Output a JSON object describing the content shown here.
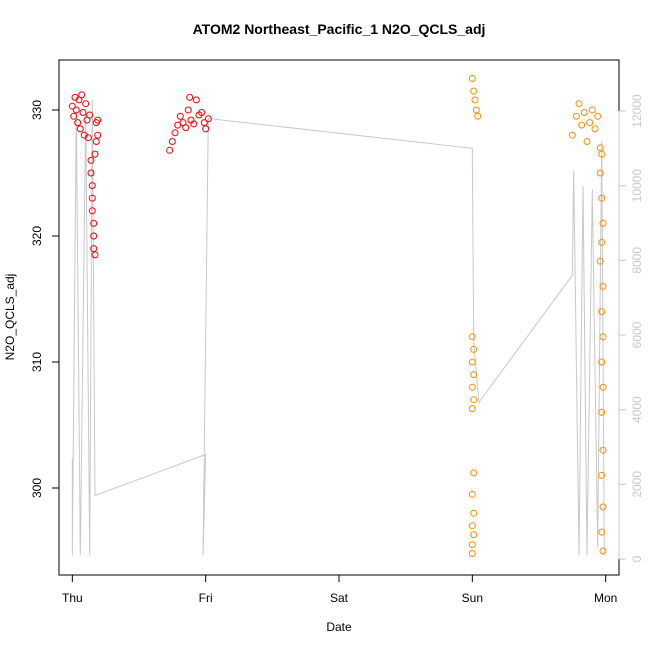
{
  "chart_data": {
    "type": "scatter",
    "title": "ATOM2 Northeast_Pacific_1 N2O_QCLS_adj",
    "xlabel": "Date",
    "ylabel": "N2O_QCLS_adj",
    "x_ticks": [
      "Thu",
      "Fri",
      "Sat",
      "Sun",
      "Mon"
    ],
    "y_ticks": [
      300,
      310,
      320,
      330
    ],
    "y_range": [
      294,
      333
    ],
    "y2_ticks": [
      0,
      2000,
      4000,
      6000,
      8000,
      10000,
      12000
    ],
    "y2_range": [
      -400,
      13000
    ],
    "x_range_days": [
      -0.1,
      4.1
    ],
    "grid": false,
    "series": [
      {
        "color": "#ff0000",
        "marker": "open-circle",
        "values": [
          [
            0.0,
            330.3
          ],
          [
            0.01,
            329.5
          ],
          [
            0.02,
            331.0
          ],
          [
            0.03,
            330.0
          ],
          [
            0.04,
            329.0
          ],
          [
            0.05,
            330.8
          ],
          [
            0.06,
            328.5
          ],
          [
            0.07,
            331.2
          ],
          [
            0.08,
            329.8
          ],
          [
            0.09,
            328.0
          ],
          [
            0.1,
            330.5
          ],
          [
            0.11,
            329.2
          ],
          [
            0.12,
            327.8
          ],
          [
            0.13,
            329.6
          ],
          [
            0.14,
            326.0
          ],
          [
            0.14,
            325.0
          ],
          [
            0.15,
            324.0
          ],
          [
            0.15,
            323.0
          ],
          [
            0.15,
            322.0
          ],
          [
            0.16,
            321.0
          ],
          [
            0.16,
            320.0
          ],
          [
            0.16,
            319.0
          ],
          [
            0.17,
            318.5
          ],
          [
            0.17,
            326.5
          ],
          [
            0.18,
            327.5
          ],
          [
            0.18,
            329.0
          ],
          [
            0.19,
            328.0
          ],
          [
            0.19,
            329.2
          ],
          [
            0.73,
            326.8
          ],
          [
            0.75,
            327.5
          ],
          [
            0.77,
            328.2
          ],
          [
            0.79,
            328.8
          ],
          [
            0.81,
            329.5
          ],
          [
            0.83,
            329.0
          ],
          [
            0.85,
            328.6
          ],
          [
            0.87,
            330.0
          ],
          [
            0.88,
            331.0
          ],
          [
            0.89,
            329.2
          ],
          [
            0.91,
            328.9
          ],
          [
            0.93,
            330.8
          ],
          [
            0.95,
            329.6
          ],
          [
            0.97,
            329.8
          ],
          [
            0.99,
            329.0
          ],
          [
            1.0,
            328.5
          ],
          [
            1.02,
            329.3
          ]
        ]
      },
      {
        "color": "#ff8c00",
        "marker": "open-circle",
        "values": [
          [
            3.0,
            332.5
          ],
          [
            3.01,
            331.5
          ],
          [
            3.02,
            330.8
          ],
          [
            3.03,
            330.0
          ],
          [
            3.04,
            329.5
          ],
          [
            3.0,
            312.0
          ],
          [
            3.01,
            311.0
          ],
          [
            3.0,
            310.0
          ],
          [
            3.01,
            309.0
          ],
          [
            3.0,
            308.0
          ],
          [
            3.01,
            307.0
          ],
          [
            3.0,
            306.3
          ],
          [
            3.01,
            301.2
          ],
          [
            3.0,
            299.5
          ],
          [
            3.01,
            298.0
          ],
          [
            3.0,
            297.0
          ],
          [
            3.01,
            296.3
          ],
          [
            3.0,
            295.5
          ],
          [
            3.0,
            294.8
          ],
          [
            3.75,
            328.0
          ],
          [
            3.78,
            329.5
          ],
          [
            3.8,
            330.5
          ],
          [
            3.82,
            328.8
          ],
          [
            3.84,
            329.8
          ],
          [
            3.86,
            327.5
          ],
          [
            3.88,
            329.0
          ],
          [
            3.9,
            330.0
          ],
          [
            3.92,
            328.5
          ],
          [
            3.94,
            329.5
          ],
          [
            3.96,
            327.0
          ],
          [
            3.97,
            326.5
          ],
          [
            3.96,
            325.0
          ],
          [
            3.97,
            323.0
          ],
          [
            3.98,
            321.0
          ],
          [
            3.97,
            319.5
          ],
          [
            3.96,
            318.0
          ],
          [
            3.98,
            316.0
          ],
          [
            3.97,
            314.0
          ],
          [
            3.98,
            312.0
          ],
          [
            3.97,
            310.0
          ],
          [
            3.98,
            308.0
          ],
          [
            3.97,
            306.0
          ],
          [
            3.98,
            303.0
          ],
          [
            3.97,
            301.0
          ],
          [
            3.98,
            298.5
          ],
          [
            3.97,
            296.5
          ],
          [
            3.98,
            295.0
          ]
        ]
      },
      {
        "color": "#c8c8c8",
        "marker": "line",
        "axis": "secondary",
        "values": [
          [
            0.0,
            2700
          ],
          [
            0.0,
            100
          ],
          [
            0.03,
            12000
          ],
          [
            0.06,
            100
          ],
          [
            0.1,
            12000
          ],
          [
            0.13,
            100
          ],
          [
            0.15,
            12300
          ],
          [
            0.17,
            1700
          ],
          [
            1.0,
            2800
          ],
          [
            0.98,
            100
          ],
          [
            1.02,
            11800
          ],
          [
            3.0,
            11000
          ],
          [
            3.01,
            5800
          ],
          [
            3.05,
            4200
          ],
          [
            3.75,
            7600
          ],
          [
            3.76,
            10400
          ],
          [
            3.8,
            100
          ],
          [
            3.83,
            10000
          ],
          [
            3.86,
            100
          ],
          [
            3.9,
            9900
          ],
          [
            3.94,
            300
          ],
          [
            3.97,
            11200
          ],
          [
            3.99,
            100
          ]
        ]
      }
    ]
  }
}
